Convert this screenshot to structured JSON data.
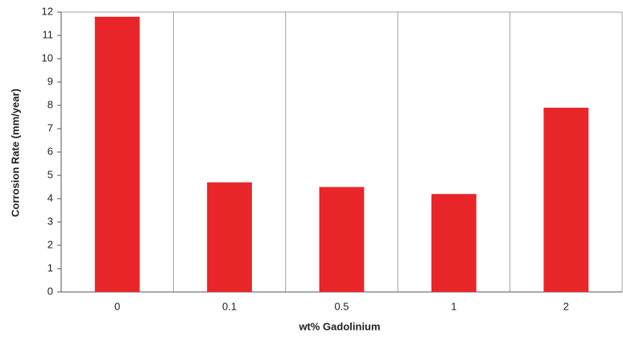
{
  "chart_data": {
    "type": "bar",
    "x_label": "wt% Gadolinium",
    "y_label": "Corrosion Rate (mm/year)",
    "categories": [
      "0",
      "0.1",
      "0.5",
      "1",
      "2"
    ],
    "values": [
      11.8,
      4.7,
      4.5,
      4.2,
      7.9
    ],
    "color": "#e8262a",
    "ylim": [
      0,
      12
    ],
    "yticks": [
      0,
      1,
      2,
      3,
      4,
      5,
      6,
      7,
      8,
      9,
      10,
      11,
      12
    ],
    "grid": true
  }
}
